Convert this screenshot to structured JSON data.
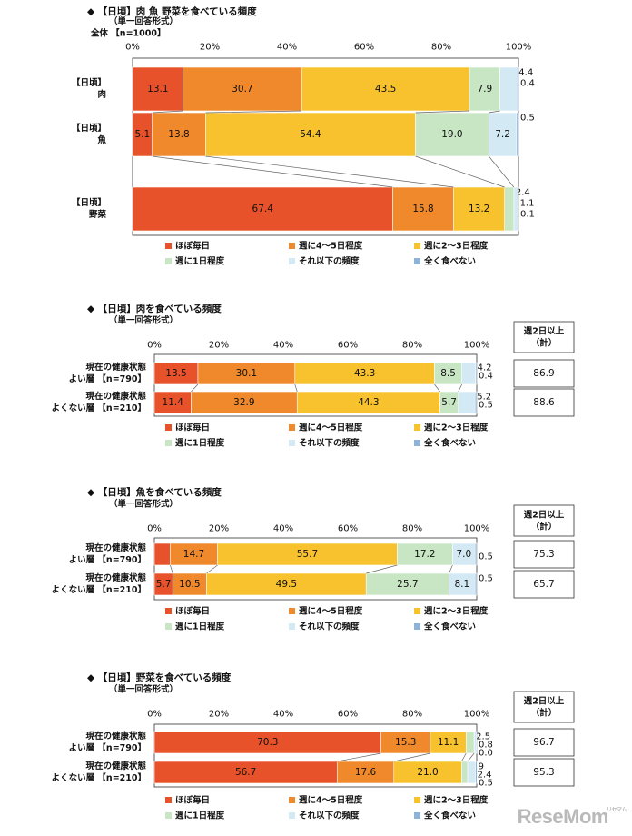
{
  "legend_labels": [
    "ほぼ毎日",
    "週に4～5日程度",
    "週に2～3日程度",
    "週に1日程度",
    "それ以下の頻度",
    "全く食べない"
  ],
  "colors": [
    "#e8522a",
    "#f0882c",
    "#f7c22e",
    "#c8e6c4",
    "#d3eaf4",
    "#8fb2d7"
  ],
  "ticks": [
    "0%",
    "20%",
    "40%",
    "60%",
    "80%",
    "100%"
  ],
  "watermark": "ReseMom",
  "charts": [
    {
      "title": "◆ 【日頃】肉 魚 野菜を食べている頻度",
      "subtitle": "（単一回答形式）",
      "base": "全体 【n=1000】",
      "rows": [
        {
          "label": [
            "【日頃】",
            "肉"
          ],
          "values": [
            13.1,
            30.7,
            43.5,
            7.9,
            4.4,
            0.4
          ],
          "labels": [
            "13.1",
            "30.7",
            "43.5",
            "7.9",
            "4.4",
            "0.4"
          ]
        },
        {
          "label": [
            "【日頃】",
            "魚"
          ],
          "values": [
            5.1,
            13.8,
            54.4,
            19.0,
            7.2,
            0.5
          ],
          "labels": [
            "5.1",
            "13.8",
            "54.4",
            "19.0",
            "7.2",
            "0.5"
          ]
        },
        {
          "label": [
            "【日頃】",
            "野菜"
          ],
          "values": [
            67.4,
            15.8,
            13.2,
            2.4,
            1.1,
            0.1
          ],
          "labels": [
            "67.4",
            "15.8",
            "13.2",
            "2.4",
            "1.1",
            "0.1"
          ]
        }
      ]
    },
    {
      "title": "◆ 【日頃】肉を食べている頻度",
      "subtitle": "（単一回答形式）",
      "summary_header": "週2日以上（計）",
      "rows": [
        {
          "label": [
            "現在の健康状態",
            "よい層 【n=790】"
          ],
          "values": [
            13.5,
            30.1,
            43.3,
            8.5,
            4.2,
            0.4
          ],
          "labels": [
            "13.5",
            "30.1",
            "43.3",
            "8.5",
            "4.2",
            "0.4"
          ],
          "summary": "86.9"
        },
        {
          "label": [
            "現在の健康状態",
            "よくない層 【n=210】"
          ],
          "values": [
            11.4,
            32.9,
            44.3,
            5.7,
            5.2,
            0.5
          ],
          "labels": [
            "11.4",
            "32.9",
            "44.3",
            "5.7",
            "5.2",
            "0.5"
          ],
          "summary": "88.6"
        }
      ]
    },
    {
      "title": "◆ 【日頃】魚を食べている頻度",
      "subtitle": "（単一回答形式）",
      "summary_header": "週2日以上（計）",
      "rows": [
        {
          "label": [
            "現在の健康状態",
            "よい層 【n=790】"
          ],
          "values": [
            4.9,
            14.7,
            55.7,
            17.2,
            7.0,
            0.5
          ],
          "labels": [
            "4.9",
            "14.7",
            "55.7",
            "17.2",
            "7.0",
            "0.5"
          ],
          "summary": "75.3"
        },
        {
          "label": [
            "現在の健康状態",
            "よくない層 【n=210】"
          ],
          "values": [
            5.7,
            10.5,
            49.5,
            25.7,
            8.1,
            0.5
          ],
          "labels": [
            "5.7",
            "10.5",
            "49.5",
            "25.7",
            "8.1",
            "0.5"
          ],
          "summary": "65.7"
        }
      ]
    },
    {
      "title": "◆ 【日頃】野菜を食べている頻度",
      "subtitle": "（単一回答形式）",
      "summary_header": "週2日以上（計）",
      "rows": [
        {
          "label": [
            "現在の健康状態",
            "よい層 【n=790】"
          ],
          "values": [
            70.3,
            15.3,
            11.1,
            2.5,
            0.8,
            0.0
          ],
          "labels": [
            "70.3",
            "15.3",
            "11.1",
            "2.5",
            "0.8",
            "0.0"
          ],
          "summary": "96.7"
        },
        {
          "label": [
            "現在の健康状態",
            "よくない層 【n=210】"
          ],
          "values": [
            56.7,
            17.6,
            21.0,
            1.9,
            2.4,
            0.5
          ],
          "labels": [
            "56.7",
            "17.6",
            "21.0",
            "1.9",
            "2.4",
            "0.5"
          ],
          "summary": "95.3"
        }
      ]
    }
  ],
  "chart_data": [
    {
      "type": "bar",
      "stacked": true,
      "orientation": "horizontal",
      "title": "【日頃】肉 魚 野菜を食べている頻度",
      "categories": [
        "【日頃】肉",
        "【日頃】魚",
        "【日頃】野菜"
      ],
      "xlim": [
        0,
        100
      ],
      "series": [
        {
          "name": "ほぼ毎日",
          "values": [
            13.1,
            5.1,
            67.4
          ]
        },
        {
          "name": "週に4～5日程度",
          "values": [
            30.7,
            13.8,
            15.8
          ]
        },
        {
          "name": "週に2～3日程度",
          "values": [
            43.5,
            54.4,
            13.2
          ]
        },
        {
          "name": "週に1日程度",
          "values": [
            7.9,
            19.0,
            2.4
          ]
        },
        {
          "name": "それ以下の頻度",
          "values": [
            4.4,
            7.2,
            1.1
          ]
        },
        {
          "name": "全く食べない",
          "values": [
            0.4,
            0.5,
            0.1
          ]
        }
      ],
      "legend": "bottom"
    },
    {
      "type": "bar",
      "stacked": true,
      "orientation": "horizontal",
      "title": "【日頃】肉を食べている頻度",
      "categories": [
        "現在の健康状態よい層【n=790】",
        "現在の健康状態よくない層【n=210】"
      ],
      "xlim": [
        0,
        100
      ],
      "series": [
        {
          "name": "ほぼ毎日",
          "values": [
            13.5,
            11.4
          ]
        },
        {
          "name": "週に4～5日程度",
          "values": [
            30.1,
            32.9
          ]
        },
        {
          "name": "週に2～3日程度",
          "values": [
            43.3,
            44.3
          ]
        },
        {
          "name": "週に1日程度",
          "values": [
            8.5,
            5.7
          ]
        },
        {
          "name": "それ以下の頻度",
          "values": [
            4.2,
            5.2
          ]
        },
        {
          "name": "全く食べない",
          "values": [
            0.4,
            0.5
          ]
        }
      ],
      "summary": {
        "name": "週2日以上（計）",
        "values": [
          86.9,
          88.6
        ]
      },
      "legend": "bottom"
    },
    {
      "type": "bar",
      "stacked": true,
      "orientation": "horizontal",
      "title": "【日頃】魚を食べている頻度",
      "categories": [
        "現在の健康状態よい層【n=790】",
        "現在の健康状態よくない層【n=210】"
      ],
      "xlim": [
        0,
        100
      ],
      "series": [
        {
          "name": "ほぼ毎日",
          "values": [
            4.9,
            5.7
          ]
        },
        {
          "name": "週に4～5日程度",
          "values": [
            14.7,
            10.5
          ]
        },
        {
          "name": "週に2～3日程度",
          "values": [
            55.7,
            49.5
          ]
        },
        {
          "name": "週に1日程度",
          "values": [
            17.2,
            25.7
          ]
        },
        {
          "name": "それ以下の頻度",
          "values": [
            7.0,
            8.1
          ]
        },
        {
          "name": "全く食べない",
          "values": [
            0.5,
            0.5
          ]
        }
      ],
      "summary": {
        "name": "週2日以上（計）",
        "values": [
          75.3,
          65.7
        ]
      },
      "legend": "bottom"
    },
    {
      "type": "bar",
      "stacked": true,
      "orientation": "horizontal",
      "title": "【日頃】野菜を食べている頻度",
      "categories": [
        "現在の健康状態よい層【n=790】",
        "現在の健康状態よくない層【n=210】"
      ],
      "xlim": [
        0,
        100
      ],
      "series": [
        {
          "name": "ほぼ毎日",
          "values": [
            70.3,
            56.7
          ]
        },
        {
          "name": "週に4～5日程度",
          "values": [
            15.3,
            17.6
          ]
        },
        {
          "name": "週に2～3日程度",
          "values": [
            11.1,
            21.0
          ]
        },
        {
          "name": "週に1日程度",
          "values": [
            2.5,
            1.9
          ]
        },
        {
          "name": "それ以下の頻度",
          "values": [
            0.8,
            2.4
          ]
        },
        {
          "name": "全く食べない",
          "values": [
            0.0,
            0.5
          ]
        }
      ],
      "summary": {
        "name": "週2日以上（計）",
        "values": [
          96.7,
          95.3
        ]
      },
      "legend": "bottom"
    }
  ]
}
